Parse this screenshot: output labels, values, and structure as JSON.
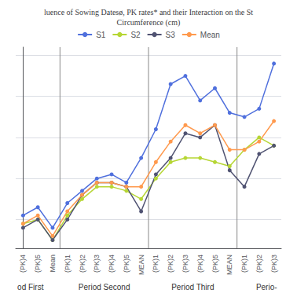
{
  "chart_data": {
    "type": "line",
    "title": "luence of Sowing Datesø, PK rates* and their Interaction on the St\nCircumference (cm)",
    "categories": [
      "(PK)4",
      "(PK)5",
      "Mean",
      "(PK)1",
      "(PK)2",
      "(PK)3",
      "(PK)4",
      "(PK)5",
      "MEAN",
      "(PK)1",
      "(PK)2",
      "(PK)3",
      "(PK)4",
      "(PK)5",
      "MEAN",
      "(PK)1",
      "(PK)2",
      "(PK)3"
    ],
    "series": [
      {
        "name": "S1",
        "values": [
          6.1,
          6.3,
          5.8,
          6.4,
          6.7,
          7.0,
          7.1,
          6.9,
          7.5,
          8.2,
          9.3,
          9.5,
          8.9,
          9.2,
          8.6,
          8.5,
          8.7,
          9.8
        ]
      },
      {
        "name": "S2",
        "values": [
          5.9,
          6.0,
          5.5,
          6.1,
          6.5,
          6.8,
          6.8,
          6.7,
          6.5,
          7.0,
          7.4,
          7.5,
          7.5,
          7.4,
          7.3,
          7.7,
          8.0,
          7.8
        ]
      },
      {
        "name": "S3",
        "values": [
          5.8,
          6.0,
          5.5,
          6.0,
          6.6,
          6.9,
          6.9,
          6.8,
          6.2,
          7.1,
          7.5,
          8.1,
          8.0,
          8.3,
          7.2,
          6.8,
          7.6,
          7.8
        ]
      },
      {
        "name": "Mean",
        "values": [
          5.9,
          6.1,
          5.6,
          6.2,
          6.6,
          6.9,
          6.9,
          6.8,
          6.8,
          7.4,
          7.9,
          8.3,
          8.1,
          8.3,
          7.7,
          7.7,
          7.9,
          8.4
        ]
      }
    ],
    "ylim": [
      5.3,
      10.2
    ],
    "yticks": [
      6,
      7,
      8,
      9,
      10
    ],
    "grid": true,
    "legend": "top",
    "tick_labels": "x",
    "marker": "circle",
    "annotations": [
      {
        "text": "od First",
        "x": 0.5
      },
      {
        "text": "Period Second",
        "x": 5.5
      },
      {
        "text": "Period Third",
        "x": 11.5
      },
      {
        "text": "Perio-",
        "x": 16.5
      }
    ],
    "vlines": [
      2.5,
      8.5,
      14.5
    ]
  }
}
